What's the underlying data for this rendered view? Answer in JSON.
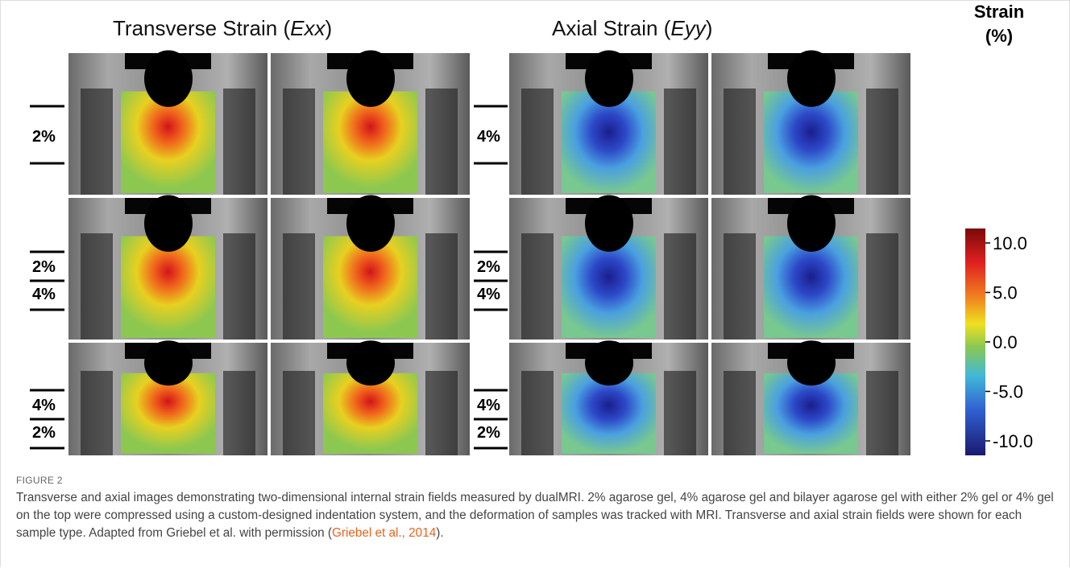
{
  "figure": {
    "panels": [
      {
        "title": [
          "Transverse Strain (",
          "Exx",
          ")"
        ],
        "rows": [
          {
            "labels": [
              "2%"
            ]
          },
          {
            "labels": [
              "2%",
              "4%"
            ]
          },
          {
            "labels": [
              "4%",
              "2%"
            ]
          }
        ]
      },
      {
        "title": [
          "Axial Strain (",
          "Eyy",
          ")"
        ],
        "rows": [
          {
            "labels": [
              "4%"
            ]
          },
          {
            "labels": [
              "2%",
              "4%"
            ]
          },
          {
            "labels": [
              "4%",
              "2%"
            ]
          }
        ]
      }
    ],
    "colorbar": {
      "title": [
        "Strain",
        "(%)"
      ],
      "ticks": [
        "10.0",
        "5.0",
        "0.0",
        "-5.0",
        "-10.0"
      ]
    }
  },
  "caption": {
    "label": "FIGURE 2",
    "text": "Transverse and axial images demonstrating two-dimensional internal strain fields measured by dualMRI. 2% agarose gel, 4% agarose gel and bilayer agarose gel with either 2% gel or 4% gel on the top were compressed using a custom-designed indentation system, and the deformation of samples was tracked with MRI. Transverse and axial strain fields were shown for each sample type. Adapted from Griebel et al. with permission (",
    "link": "Griebel et al., 2014",
    "end": ")."
  }
}
